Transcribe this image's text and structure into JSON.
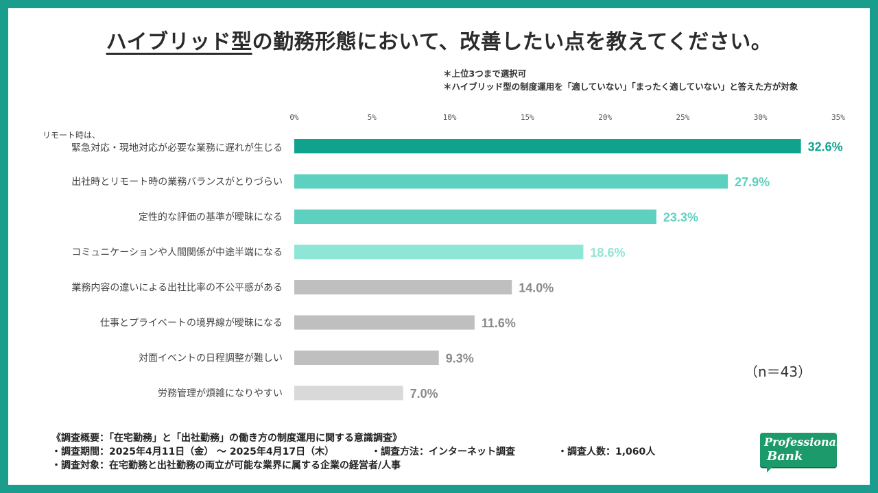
{
  "title": {
    "underlined": "ハイブリッド型",
    "rest": "の勤務形態において、改善したい点を教えてください。"
  },
  "notes": [
    "＊上位3つまで選択可",
    "＊ハイブリッド型の制度運用を「適していない」「まったく適していない」と答えた方が対象"
  ],
  "n_label": "（n＝43）",
  "survey": {
    "heading": "《調査概要：「在宅勤務」と「出社勤務」の働き方の制度運用に関する意識調査》",
    "period": "・調査期間：2025年4月11日（金） 〜 2025年4月17日（木）",
    "method": "・調査方法：インターネット調査",
    "count": "・調査人数：1,060人",
    "target": "・調査対象：在宅勤務と出社勤務の両立が可能な業界に属する企業の経営者/人事"
  },
  "logo": {
    "line1": "Professional",
    "line2": "Bank",
    "color": "#1d9a6c"
  },
  "colors": {
    "frame": "#1a9d8c",
    "bar_colors": [
      "#0fa38d",
      "#5ed0bf",
      "#5ed0bf",
      "#8ee6d6",
      "#bfbfbf",
      "#bfbfbf",
      "#bfbfbf",
      "#d9d9d9"
    ]
  },
  "chart_data": {
    "type": "bar",
    "orientation": "horizontal",
    "x_ticks": [
      "0%",
      "5%",
      "10%",
      "15%",
      "20%",
      "25%",
      "30%",
      "35%"
    ],
    "xlim": [
      0,
      35
    ],
    "categories": [
      [
        "リモート時は、",
        "緊急対応・現地対応が必要な業務に遅れが生じる"
      ],
      [
        "出社時とリモート時の業務バランスがとりづらい"
      ],
      [
        "定性的な評価の基準が曖昧になる"
      ],
      [
        "コミュニケーションや人間関係が中途半端になる"
      ],
      [
        "業務内容の違いによる出社比率の不公平感がある"
      ],
      [
        "仕事とプライベートの境界線が曖昧になる"
      ],
      [
        "対面イベントの日程調整が難しい"
      ],
      [
        "労務管理が煩雑になりやすい"
      ]
    ],
    "values": [
      32.6,
      27.9,
      23.3,
      18.6,
      14.0,
      11.6,
      9.3,
      7.0
    ],
    "value_labels": [
      "32.6%",
      "27.9%",
      "23.3%",
      "18.6%",
      "14.0%",
      "11.6%",
      "9.3%",
      "7.0%"
    ],
    "label_colors": [
      "#0fa38d",
      "#5ed0bf",
      "#5ed0bf",
      "#8ee6d6",
      "#8a8a8a",
      "#8a8a8a",
      "#8a8a8a",
      "#8a8a8a"
    ]
  }
}
